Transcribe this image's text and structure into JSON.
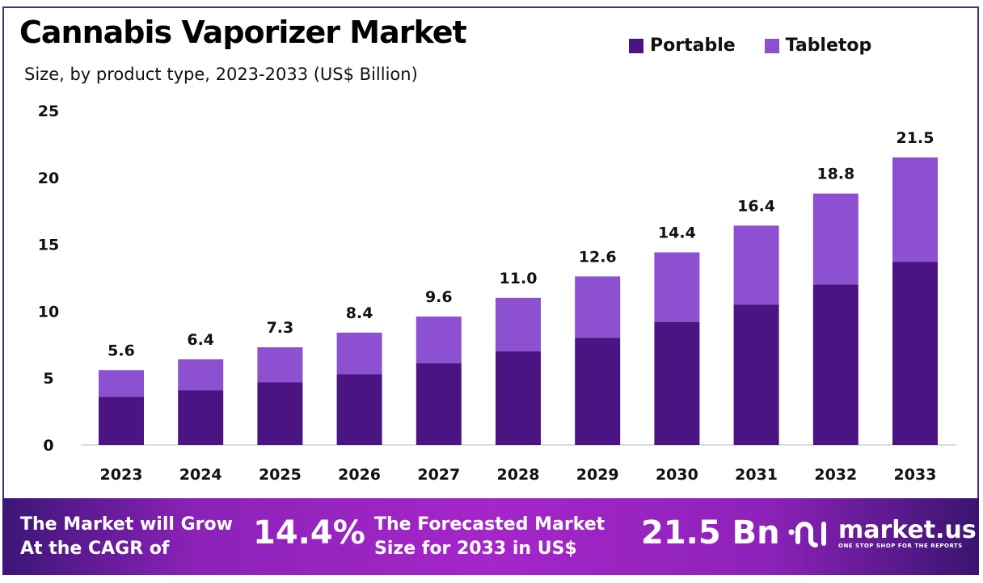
{
  "chart_data": {
    "type": "bar",
    "stacked": true,
    "title": "Cannabis Vaporizer Market",
    "subtitle": "Size, by product type, 2023-2033 (US$ Billion)",
    "xlabel": "",
    "ylabel": "",
    "ylim": [
      0,
      25
    ],
    "yticks": [
      "0",
      "5",
      "10",
      "15",
      "20",
      "25"
    ],
    "grid": false,
    "legend_position": "top-right",
    "categories": [
      "2023",
      "2024",
      "2025",
      "2026",
      "2027",
      "2028",
      "2029",
      "2030",
      "2031",
      "2032",
      "2033"
    ],
    "series": [
      {
        "name": "Portable",
        "color": "#4a1583",
        "values": [
          3.6,
          4.1,
          4.7,
          5.3,
          6.1,
          7.0,
          8.0,
          9.2,
          10.5,
          12.0,
          13.7
        ]
      },
      {
        "name": "Tabletop",
        "color": "#8d50d1",
        "values": [
          2.0,
          2.3,
          2.6,
          3.1,
          3.5,
          4.0,
          4.6,
          5.2,
          5.9,
          6.8,
          7.8
        ]
      }
    ],
    "totals": [
      "5.6",
      "6.4",
      "7.3",
      "8.4",
      "9.6",
      "11.0",
      "12.6",
      "14.4",
      "16.4",
      "18.8",
      "21.5"
    ]
  },
  "footer": {
    "cagr_label_1": "The Market will Grow",
    "cagr_label_2": "At the CAGR of",
    "cagr_value": "14.4%",
    "forecast_label_1": "The Forecasted Market",
    "forecast_label_2": "Size for 2033 in US$",
    "forecast_value": "21.5 Bn",
    "logo_text": "market.us",
    "logo_tagline": "ONE STOP SHOP FOR THE REPORTS"
  }
}
